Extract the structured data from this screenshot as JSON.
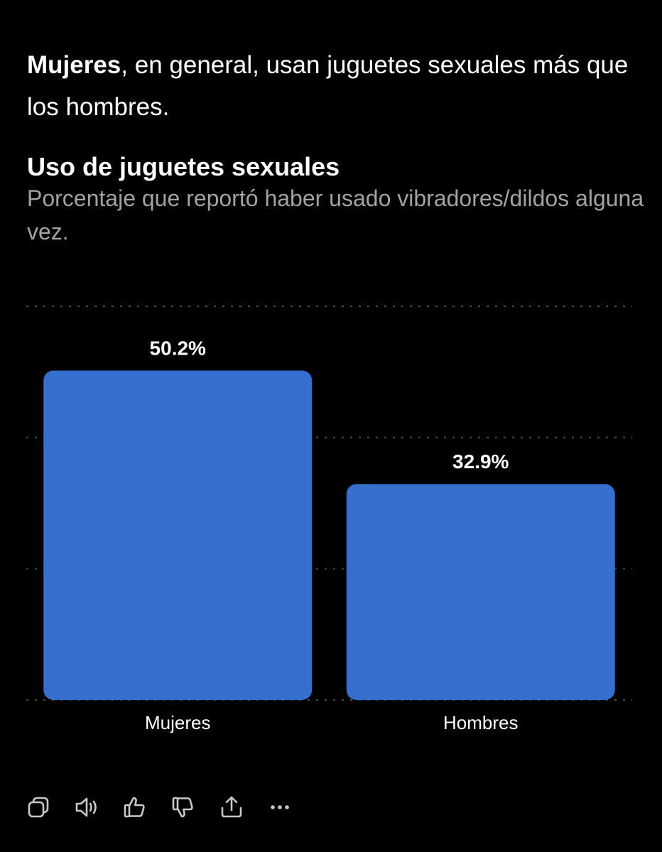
{
  "intro": {
    "bold": "Mujeres",
    "rest": ", en general, usan juguetes sexuales más que los hombres."
  },
  "chart_data": {
    "type": "bar",
    "title": "Uso de juguetes sexuales",
    "subtitle": "Porcentaje que reportó haber usado vibradores/dildos alguna vez.",
    "categories": [
      "Mujeres",
      "Hombres"
    ],
    "values": [
      50.2,
      32.9
    ],
    "data_labels": [
      "50.2%",
      "32.9%"
    ],
    "ylim": [
      0,
      60
    ],
    "gridlines": [
      0,
      20,
      40,
      60
    ],
    "grid": true,
    "bar_color": "#3570cf",
    "grid_color": "#4a4a4a",
    "label_color": "#ffffff"
  },
  "actions": [
    {
      "name": "copy-icon"
    },
    {
      "name": "speaker-icon"
    },
    {
      "name": "thumbs-up-icon"
    },
    {
      "name": "thumbs-down-icon"
    },
    {
      "name": "share-icon"
    },
    {
      "name": "more-icon"
    }
  ]
}
